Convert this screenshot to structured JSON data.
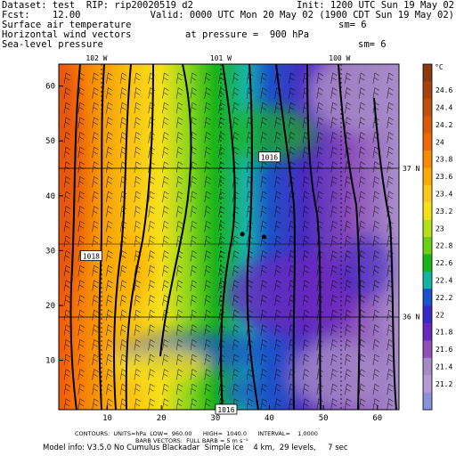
{
  "header": {
    "dataset_line": "Dataset: test  RIP: rip20020519 d2",
    "init_line": "Init: 1200 UTC Sun 19 May 02",
    "fcst_line": "Fcst:    12.00",
    "valid_line": "Valid: 0000 UTC Mon 20 May 02 (1900 CDT Sun 19 May 02)",
    "field1": "Surface air temperature",
    "field1_sm": "sm= 6",
    "field2": "Horizontal wind vectors",
    "field2_pressure": "at pressure =  900 hPa",
    "field3": "Sea-level pressure",
    "field3_sm": "sm= 6"
  },
  "footer": {
    "contours_line": "CONTOURS:  UNITS=hPa  LOW=  960.00      HIGH=  1040.0      INTERVAL=    1.0000",
    "barbs_line": "BARB VECTORS:  FULL BARB = 5 m s⁻¹",
    "model_line": "Model info: V3.5.0 No Cumulus Blackadar  Simple ice    4 km,  29 levels,     7 sec"
  },
  "chart_data": {
    "type": "heatmap",
    "x_ticks": [
      10,
      20,
      30,
      40,
      50,
      60
    ],
    "y_ticks": [
      10,
      20,
      30,
      40,
      50,
      60
    ],
    "xlim": [
      1,
      64
    ],
    "ylim": [
      1,
      64
    ],
    "lon_labels": [
      {
        "label": "102 W",
        "x": 8
      },
      {
        "label": "101 W",
        "x": 31
      },
      {
        "label": "100 W",
        "x": 53
      }
    ],
    "lat_labels": [
      {
        "label": "37 N",
        "y": 45
      },
      {
        "label": "36 N",
        "y": 18
      }
    ],
    "isobar_labels": [
      {
        "label": "1018",
        "x": 7,
        "y": 29
      },
      {
        "label": "1016",
        "x": 40,
        "y": 47
      },
      {
        "label": "1016",
        "x": 32,
        "y": 1
      }
    ],
    "colorbar": {
      "unit": "°C",
      "labels": [
        "24.6",
        "24.4",
        "24.2",
        "24",
        "23.8",
        "23.6",
        "23.4",
        "23.2",
        "23",
        "22.8",
        "22.6",
        "22.4",
        "22.2",
        "22",
        "21.8",
        "21.6",
        "21.4",
        "21.2"
      ],
      "colors": [
        "#8b3a10",
        "#a8420f",
        "#c24d0c",
        "#d95b0a",
        "#ec6a08",
        "#f58a05",
        "#fbaa0a",
        "#fcc81e",
        "#f6e01c",
        "#b7e01c",
        "#6fcf14",
        "#19b31a",
        "#16b3a0",
        "#1a52c9",
        "#3a2ac2",
        "#6a28be",
        "#9050b8",
        "#a48bc7",
        "#b49bd4",
        "#8a92da"
      ]
    },
    "station_points": [
      {
        "x": 35,
        "y": 33
      },
      {
        "x": 39,
        "y": 32.5
      }
    ]
  }
}
